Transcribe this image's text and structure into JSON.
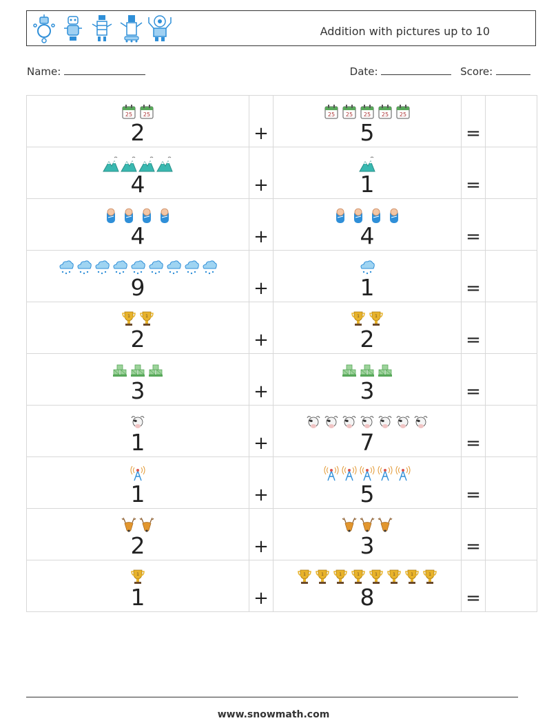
{
  "header": {
    "title": "Addition with pictures up to 10",
    "robot_icons": [
      "robot-icon",
      "robot-icon",
      "robot-icon",
      "robot-icon",
      "robot-icon"
    ]
  },
  "fields": {
    "name_label": "Name:",
    "date_label": "Date:",
    "score_label": "Score:"
  },
  "symbols": {
    "plus": "+",
    "equals": "="
  },
  "problems": [
    {
      "a": 2,
      "b": 5,
      "icon": "calendar-icon"
    },
    {
      "a": 4,
      "b": 1,
      "icon": "mountain-icon"
    },
    {
      "a": 4,
      "b": 4,
      "icon": "baby-icon"
    },
    {
      "a": 9,
      "b": 1,
      "icon": "rain-cloud-icon"
    },
    {
      "a": 2,
      "b": 2,
      "icon": "trophy-icon"
    },
    {
      "a": 3,
      "b": 3,
      "icon": "pallet-boxes-icon"
    },
    {
      "a": 1,
      "b": 7,
      "icon": "cow-icon"
    },
    {
      "a": 1,
      "b": 5,
      "icon": "radio-tower-icon"
    },
    {
      "a": 2,
      "b": 3,
      "icon": "deer-icon"
    },
    {
      "a": 1,
      "b": 8,
      "icon": "trophy-icon"
    }
  ],
  "colors": {
    "blue": "#2f8fd8",
    "gold": "#e8b32a",
    "green": "#58a85a",
    "teal": "#39b8b0",
    "orange": "#e2962e"
  },
  "footer": {
    "url": "www.snowmath.com"
  }
}
